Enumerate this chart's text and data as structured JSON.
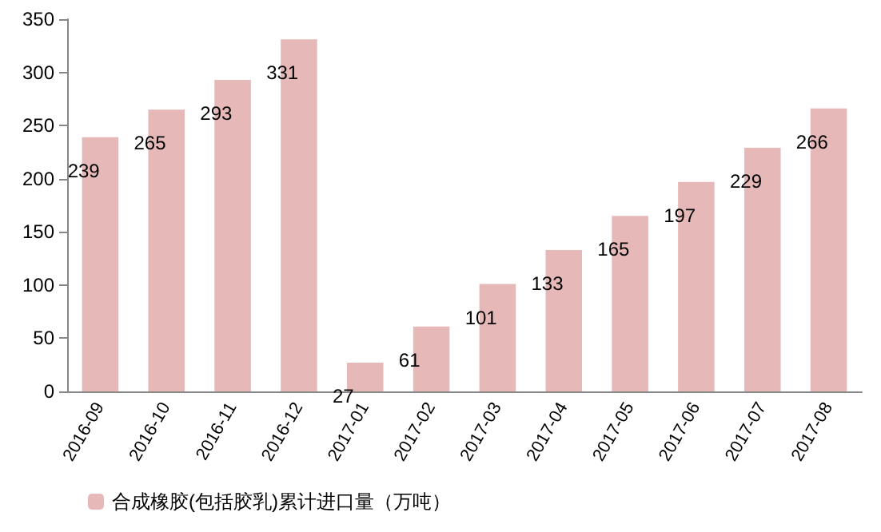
{
  "chart_data": {
    "type": "bar",
    "categories": [
      "2016-09",
      "2016-10",
      "2016-11",
      "2016-12",
      "2017-01",
      "2017-02",
      "2017-03",
      "2017-04",
      "2017-05",
      "2017-06",
      "2017-07",
      "2017-08"
    ],
    "series": [
      {
        "name": "合成橡胶(包括胶乳)累计进口量（万吨）",
        "color": "#e6b9b8",
        "values": [
          239,
          265,
          293,
          331,
          27,
          61,
          101,
          133,
          165,
          197,
          229,
          266
        ]
      }
    ],
    "ylim": [
      0,
      350
    ],
    "yticks": [
      0,
      50,
      100,
      150,
      200,
      250,
      300,
      350
    ],
    "data_labels": true,
    "legend": "bottom left",
    "grid": false
  }
}
